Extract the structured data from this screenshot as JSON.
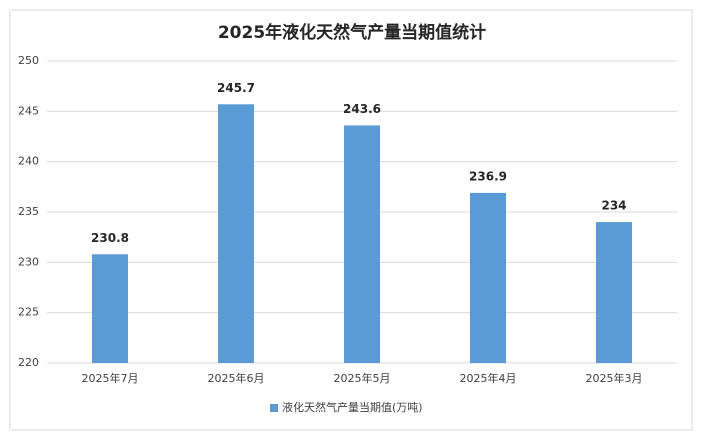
{
  "chart_data": {
    "type": "bar",
    "title": "2025年液化天然气产量当期值统计",
    "categories": [
      "2025年7月",
      "2025年6月",
      "2025年5月",
      "2025年4月",
      "2025年3月"
    ],
    "series": [
      {
        "name": "液化天然气产量当期值(万吨)",
        "color": "#5b9bd5",
        "values": [
          230.8,
          245.7,
          243.6,
          236.9,
          234
        ]
      }
    ],
    "ylim": [
      220,
      250
    ],
    "yticks": [
      220,
      225,
      230,
      235,
      240,
      245,
      250
    ],
    "grid": true,
    "legend": "bottom"
  }
}
